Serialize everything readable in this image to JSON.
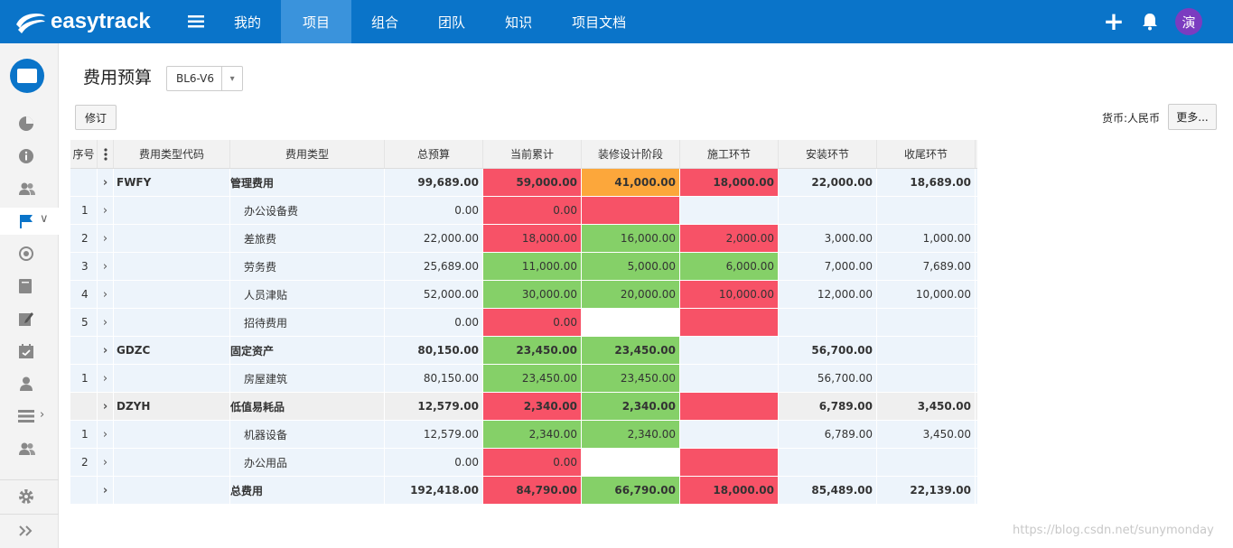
{
  "app": {
    "name": "easytrack"
  },
  "nav": {
    "items": [
      "我的",
      "项目",
      "组合",
      "团队",
      "知识",
      "项目文档"
    ],
    "active_index": 1
  },
  "user": {
    "avatar_text": "演"
  },
  "colors": {
    "brand": "#0a74c9",
    "nav_active": "#3a93dc",
    "over_budget": "#f75267",
    "within_budget": "#85d068",
    "warning": "#fca73b"
  },
  "page": {
    "title": "费用预算",
    "version": "BL6-V6",
    "revise_button": "修订",
    "currency_label": "货币:人民币",
    "more_button": "更多..."
  },
  "table": {
    "columns": [
      "序号",
      "费用类型代码",
      "费用类型",
      "总预算",
      "当前累计",
      "装修设计阶段",
      "施工环节",
      "安装环节",
      "收尾环节"
    ],
    "rows": [
      {
        "no": "",
        "code": "FWFY",
        "type": "管理费用",
        "total": "99,689.00",
        "current": "59,000.00",
        "design": "41,000.00",
        "construct": "18,000.00",
        "install": "22,000.00",
        "finish": "18,689.00"
      },
      {
        "no": "1",
        "code": "",
        "type": "办公设备费",
        "total": "0.00",
        "current": "0.00",
        "design": "",
        "construct": "",
        "install": "",
        "finish": ""
      },
      {
        "no": "2",
        "code": "",
        "type": "差旅费",
        "total": "22,000.00",
        "current": "18,000.00",
        "design": "16,000.00",
        "construct": "2,000.00",
        "install": "3,000.00",
        "finish": "1,000.00"
      },
      {
        "no": "3",
        "code": "",
        "type": "劳务费",
        "total": "25,689.00",
        "current": "11,000.00",
        "design": "5,000.00",
        "construct": "6,000.00",
        "install": "7,000.00",
        "finish": "7,689.00"
      },
      {
        "no": "4",
        "code": "",
        "type": "人员津贴",
        "total": "52,000.00",
        "current": "30,000.00",
        "design": "20,000.00",
        "construct": "10,000.00",
        "install": "12,000.00",
        "finish": "10,000.00"
      },
      {
        "no": "5",
        "code": "",
        "type": "招待费用",
        "total": "0.00",
        "current": "0.00",
        "design": "",
        "construct": "",
        "install": "",
        "finish": ""
      },
      {
        "no": "",
        "code": "GDZC",
        "type": "固定资产",
        "total": "80,150.00",
        "current": "23,450.00",
        "design": "23,450.00",
        "construct": "",
        "install": "56,700.00",
        "finish": ""
      },
      {
        "no": "1",
        "code": "",
        "type": "房屋建筑",
        "total": "80,150.00",
        "current": "23,450.00",
        "design": "23,450.00",
        "construct": "",
        "install": "56,700.00",
        "finish": ""
      },
      {
        "no": "",
        "code": "DZYH",
        "type": "低值易耗品",
        "total": "12,579.00",
        "current": "2,340.00",
        "design": "2,340.00",
        "construct": "",
        "install": "6,789.00",
        "finish": "3,450.00"
      },
      {
        "no": "1",
        "code": "",
        "type": "机器设备",
        "total": "12,579.00",
        "current": "2,340.00",
        "design": "2,340.00",
        "construct": "",
        "install": "6,789.00",
        "finish": "3,450.00"
      },
      {
        "no": "2",
        "code": "",
        "type": "办公用品",
        "total": "0.00",
        "current": "0.00",
        "design": "",
        "construct": "",
        "install": "",
        "finish": ""
      },
      {
        "no": "",
        "code": "",
        "type": "总费用",
        "total": "192,418.00",
        "current": "84,790.00",
        "design": "66,790.00",
        "construct": "18,000.00",
        "install": "85,489.00",
        "finish": "22,139.00"
      }
    ]
  },
  "watermark": "https://blog.csdn.net/sunymonday"
}
